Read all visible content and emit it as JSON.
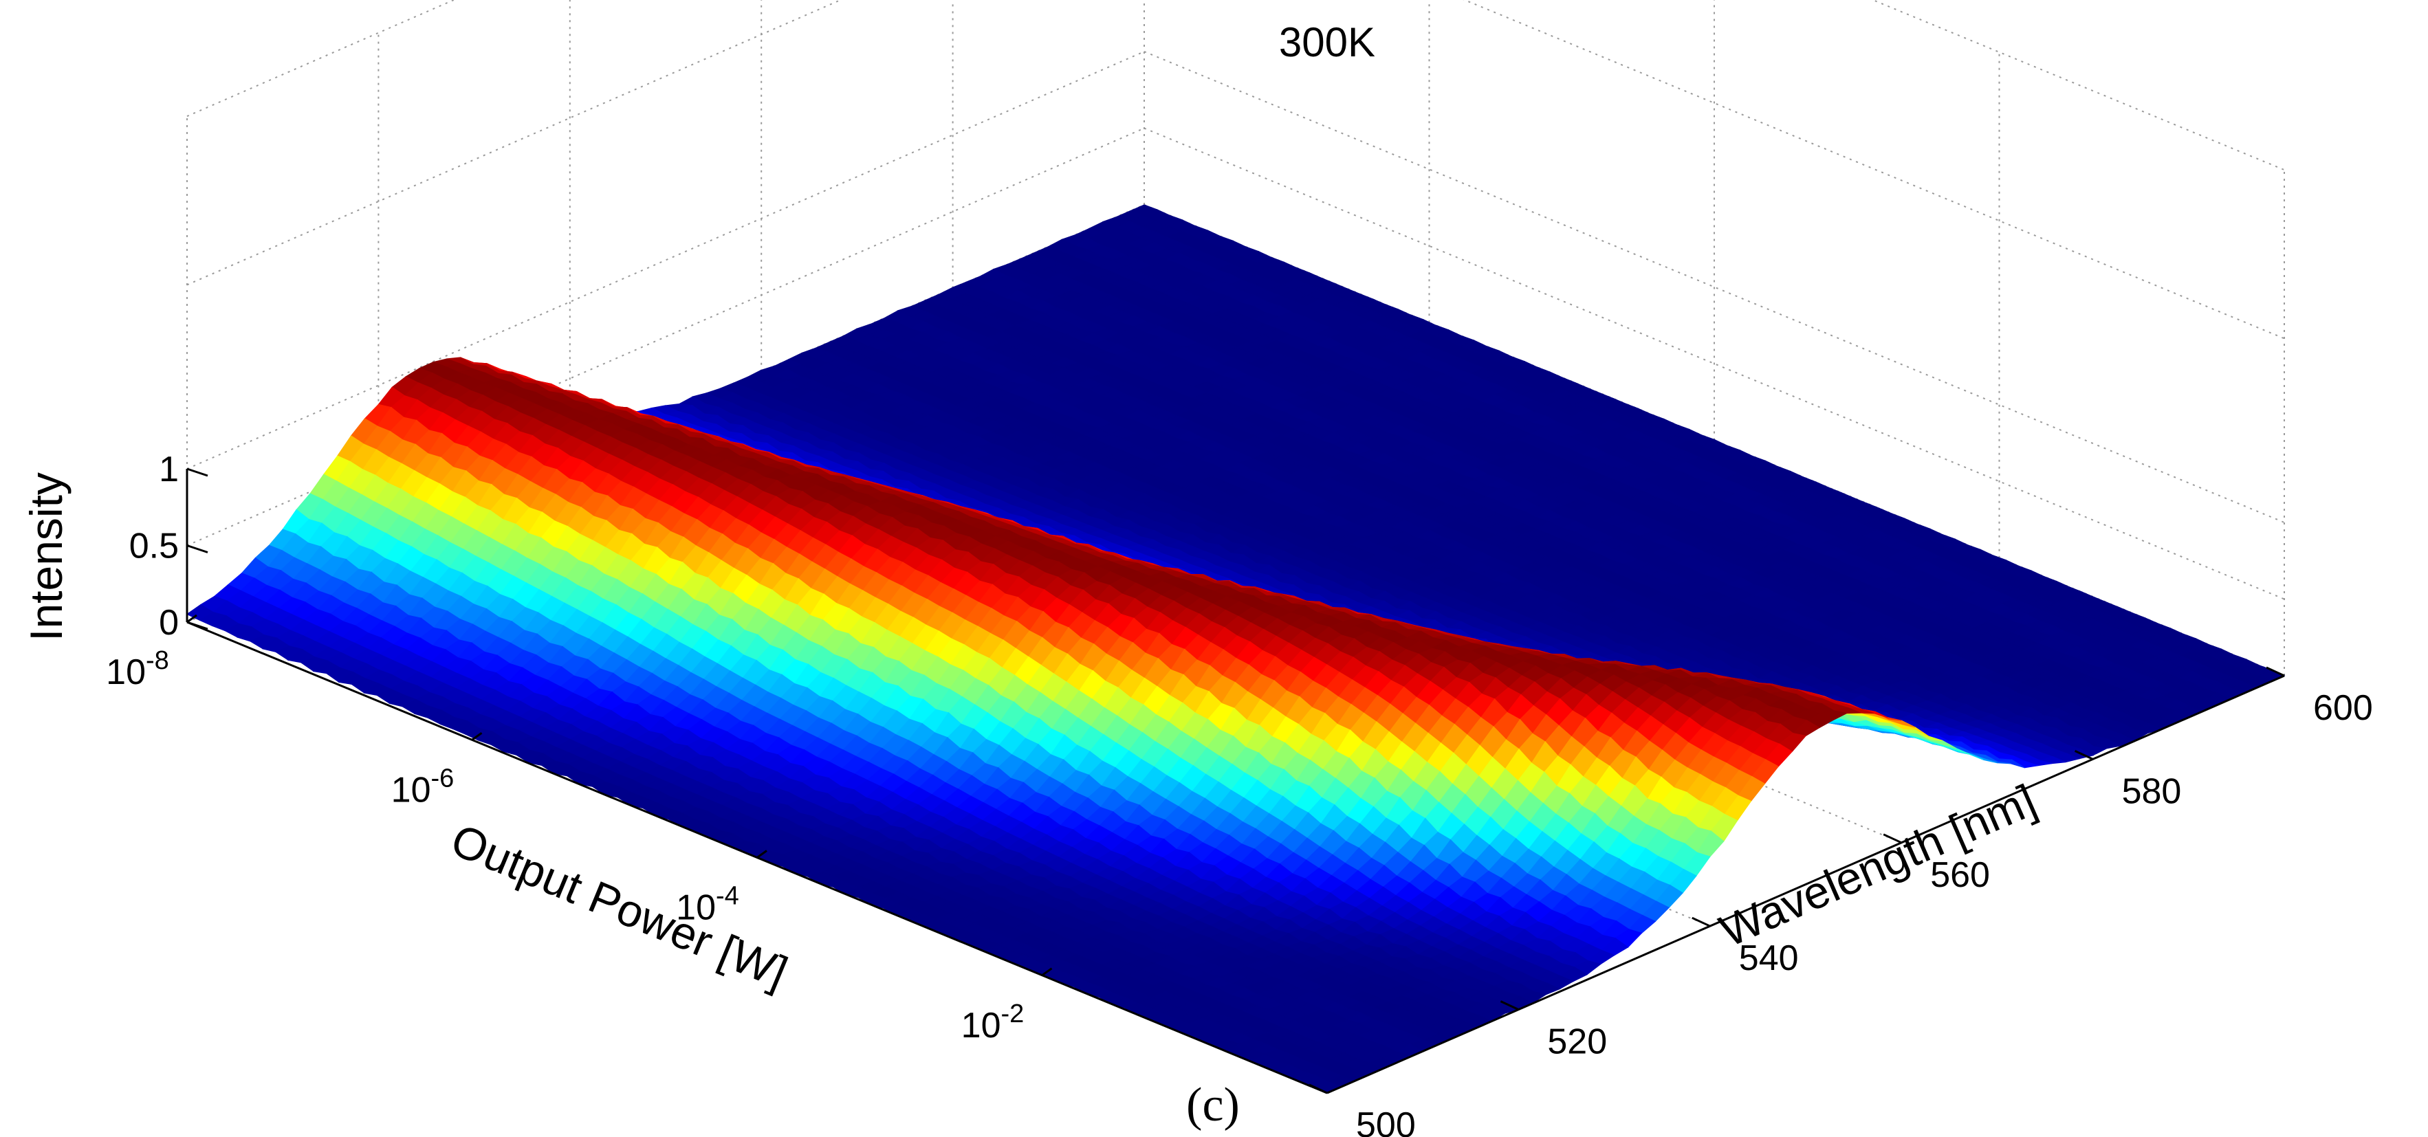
{
  "chart_data": {
    "type": "surface",
    "title": "300K",
    "panel_label": "(c)",
    "colormap": "jet",
    "x_axis": {
      "label": "Output Power [W]",
      "scale": "log",
      "range": [
        1e-08,
        1
      ],
      "ticks": [
        {
          "value": 1e-08,
          "base": "10",
          "exp": "-8"
        },
        {
          "value": 1e-06,
          "base": "10",
          "exp": "-6"
        },
        {
          "value": 0.0001,
          "base": "10",
          "exp": "-4"
        },
        {
          "value": 0.01,
          "base": "10",
          "exp": "-2"
        }
      ]
    },
    "y_axis": {
      "label": "Wavelength [nm]",
      "range": [
        500,
        600
      ],
      "ticks": [
        "500",
        "520",
        "540",
        "560",
        "580",
        "600"
      ]
    },
    "z_axis": {
      "label": "Intensity",
      "range": [
        0,
        1
      ],
      "ticks": [
        "0",
        "0.5",
        "1"
      ]
    },
    "peak_wavelength_nm": [
      {
        "log_power": -8,
        "wavelength": 525
      },
      {
        "log_power": -7,
        "wavelength": 527
      },
      {
        "log_power": -6,
        "wavelength": 529
      },
      {
        "log_power": -5,
        "wavelength": 532
      },
      {
        "log_power": -4,
        "wavelength": 534
      },
      {
        "log_power": -3,
        "wavelength": 538
      },
      {
        "log_power": -2,
        "wavelength": 542
      },
      {
        "log_power": -1.5,
        "wavelength": 545
      },
      {
        "log_power": -1,
        "wavelength": 549
      },
      {
        "log_power": -0.5,
        "wavelength": 552
      },
      {
        "log_power": 0,
        "wavelength": 553
      }
    ],
    "peak_fwhm_nm": 24,
    "grid": true
  }
}
